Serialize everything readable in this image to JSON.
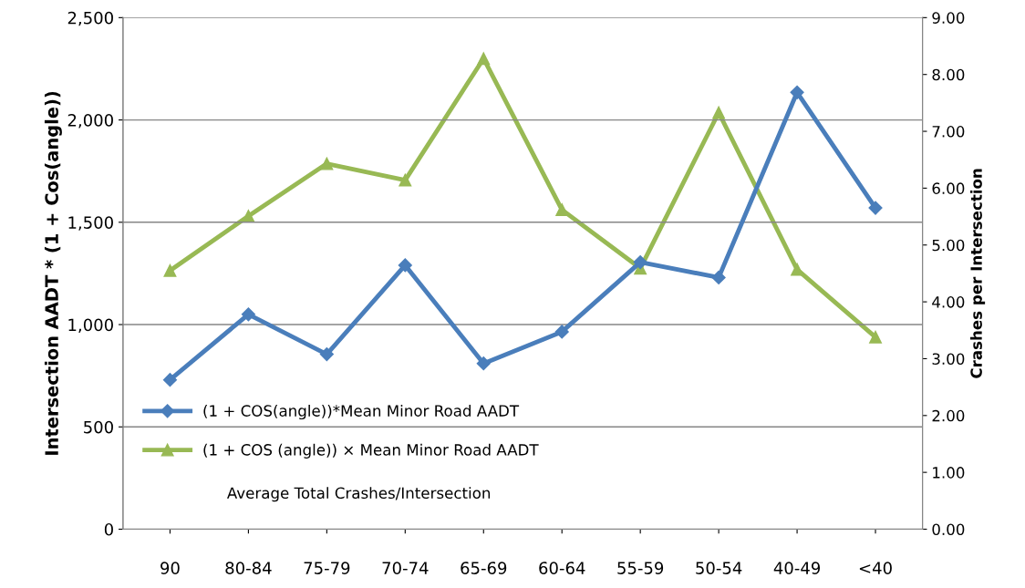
{
  "chart_data": {
    "type": "line",
    "ylabel": "Intersection AADT * (1 + Cos(angle))",
    "y2label": "Crashes per Intersection",
    "categories": [
      "90",
      "80-84",
      "75-79",
      "70-74",
      "65-69",
      "60-64",
      "55-59",
      "50-54",
      "40-49",
      "<40"
    ],
    "series": [
      {
        "name": "(1 + COS(angle))*Mean Minor Road AADT",
        "color": "#4a7ebb",
        "marker": "diamond",
        "values": [
          730,
          1050,
          855,
          1290,
          810,
          965,
          1305,
          1230,
          2135,
          1570
        ]
      },
      {
        "name": "(1 + COS (angle)) × Mean Minor Road AADT",
        "color": "#98b954",
        "marker": "triangle",
        "axis": "y2",
        "values": [
          4.55,
          5.51,
          6.43,
          6.14,
          8.28,
          5.62,
          4.59,
          7.33,
          4.57,
          3.38
        ]
      }
    ],
    "ylim": [
      0,
      2500
    ],
    "yticks": [
      0,
      500,
      {
        "value": 1000,
        "label": "1,000"
      },
      {
        "value": 1500,
        "label": "1,500"
      },
      {
        "value": 2000,
        "label": "2,000"
      },
      {
        "value": 2500,
        "label": "2,500"
      }
    ],
    "y2lim": [
      0,
      9
    ],
    "y2ticks": [
      {
        "value": 0,
        "label": "0.00"
      },
      {
        "value": 1,
        "label": "1.00"
      },
      {
        "value": 2,
        "label": "2.00"
      },
      {
        "value": 3,
        "label": "3.00"
      },
      {
        "value": 4,
        "label": "4.00"
      },
      {
        "value": 5,
        "label": "5.00"
      },
      {
        "value": 6,
        "label": "6.00"
      },
      {
        "value": 7,
        "label": "7.00"
      },
      {
        "value": 8,
        "label": "8.00"
      },
      {
        "value": 9,
        "label": "9.00"
      }
    ],
    "grid": "y",
    "legend": "left",
    "line_style": "solid",
    "annotations": [
      "Average Total Crashes/Intersection"
    ]
  }
}
